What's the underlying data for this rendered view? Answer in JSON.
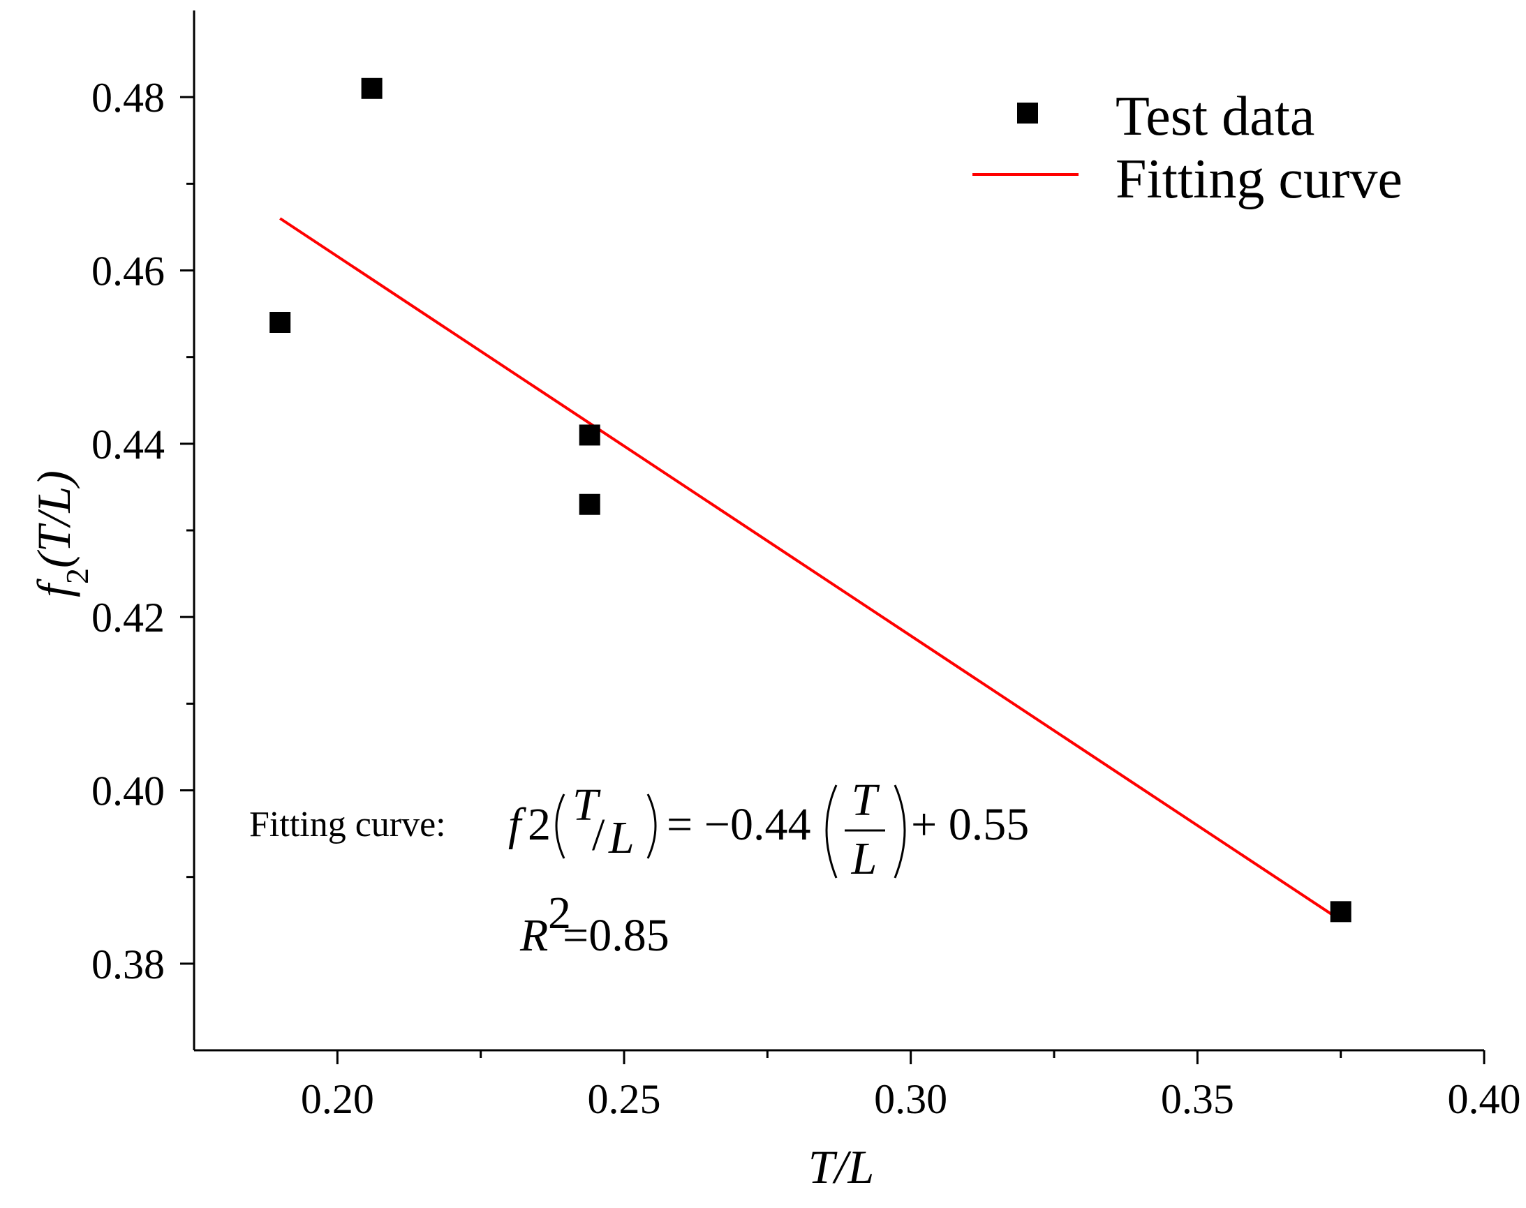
{
  "chart_data": {
    "type": "scatter",
    "title": "",
    "xlabel": "T/L",
    "ylabel": "f2(T/L)",
    "xlim": [
      0.175,
      0.4
    ],
    "ylim": [
      0.37,
      0.49
    ],
    "x_major_ticks": [
      0.2,
      0.25,
      0.3,
      0.35,
      0.4
    ],
    "x_tick_labels": [
      "0.20",
      "0.25",
      "0.30",
      "0.35",
      "0.40"
    ],
    "x_minor_ticks": [
      0.225,
      0.275,
      0.325,
      0.375
    ],
    "y_major_ticks": [
      0.38,
      0.4,
      0.42,
      0.44,
      0.46,
      0.48
    ],
    "y_tick_labels": [
      "0.38",
      "0.40",
      "0.42",
      "0.44",
      "0.46",
      "0.48"
    ],
    "y_minor_ticks": [
      0.39,
      0.41,
      0.43,
      0.45,
      0.47
    ],
    "grid": false,
    "legend_position": "top-right",
    "series": [
      {
        "name": "Test data",
        "kind": "scatter",
        "marker": "square",
        "color": "#000000",
        "x": [
          0.19,
          0.206,
          0.244,
          0.244,
          0.375
        ],
        "y": [
          0.454,
          0.481,
          0.441,
          0.433,
          0.386
        ]
      },
      {
        "name": "Fitting curve",
        "kind": "line",
        "color": "#ff0000",
        "slope": -0.44,
        "intercept": 0.55,
        "x": [
          0.19,
          0.375
        ],
        "y": [
          0.466,
          0.385
        ]
      }
    ],
    "annotation": {
      "label": "Fitting curve:",
      "f": "f",
      "sub": "2",
      "t": "T",
      "slash": "/",
      "l": "L",
      "eq_part": "= −0.44",
      "plus_part": "+ 0.55",
      "r2_r": "R",
      "r2_sup": "2",
      "r2_value": "=0.85"
    }
  }
}
